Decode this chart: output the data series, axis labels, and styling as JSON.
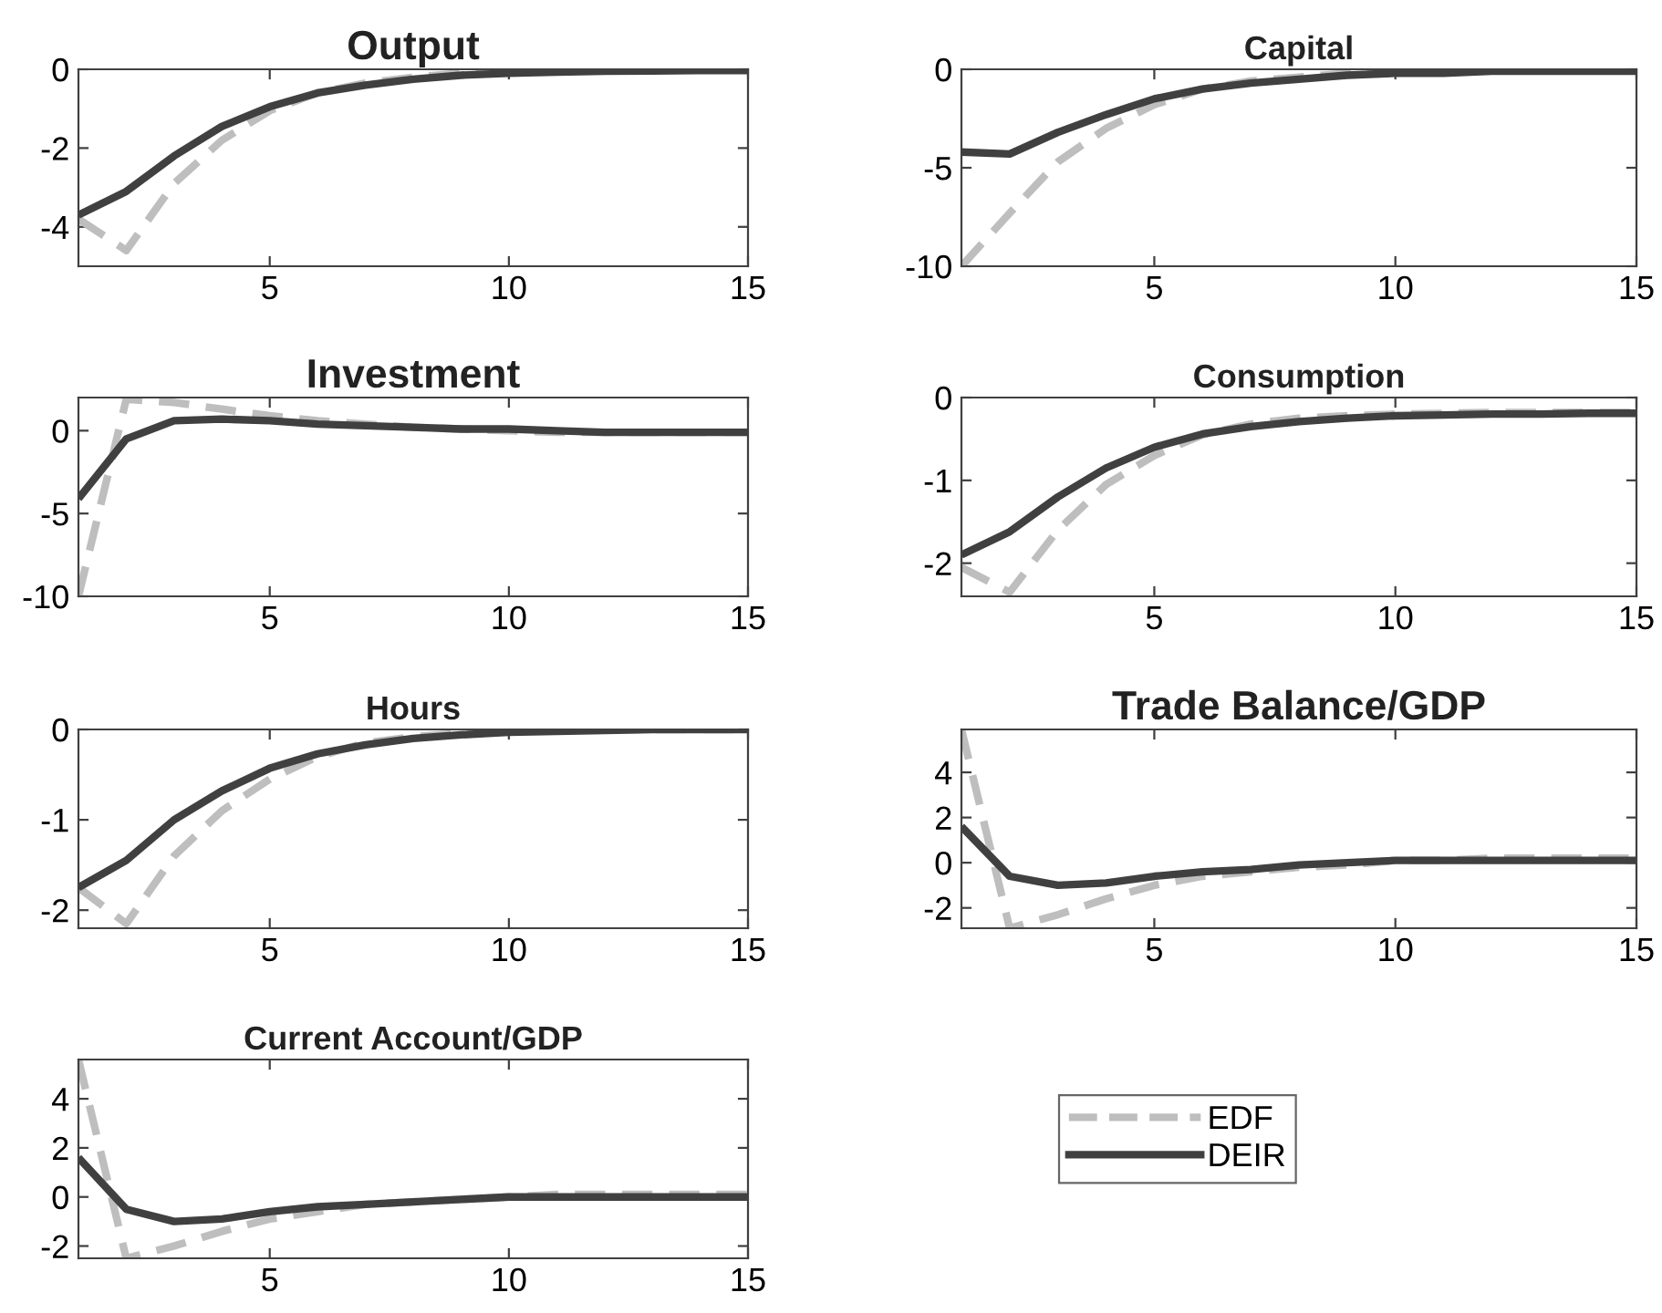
{
  "chart_data": [
    {
      "type": "line",
      "title": "Output",
      "x": [
        1,
        2,
        3,
        4,
        5,
        6,
        7,
        8,
        9,
        10,
        11,
        12,
        13,
        14,
        15
      ],
      "xlim": [
        1,
        15
      ],
      "xticks": [
        5,
        10,
        15
      ],
      "ylim": [
        -5,
        0
      ],
      "yticks": [
        -4,
        -2,
        0
      ],
      "line_style": "solid",
      "series": [
        {
          "color": "#bebebe",
          "line_style": "dashed",
          "values": [
            -3.8,
            -4.6,
            -2.9,
            -1.8,
            -1.05,
            -0.6,
            -0.35,
            -0.2,
            -0.1,
            -0.05,
            -0.02,
            0,
            0,
            0,
            0
          ]
        },
        {
          "color": "#404040",
          "values": [
            -3.7,
            -3.1,
            -2.2,
            -1.45,
            -0.95,
            -0.6,
            -0.4,
            -0.25,
            -0.15,
            -0.1,
            -0.07,
            -0.05,
            -0.04,
            -0.03,
            -0.03
          ]
        }
      ]
    },
    {
      "type": "line",
      "title": "Capital",
      "x": [
        1,
        2,
        3,
        4,
        5,
        6,
        7,
        8,
        9,
        10,
        11,
        12,
        13,
        14,
        15
      ],
      "xlim": [
        1,
        15
      ],
      "xticks": [
        5,
        10,
        15
      ],
      "ylim": [
        -10,
        0
      ],
      "yticks": [
        -10,
        -5,
        0
      ],
      "line_style": "solid",
      "series": [
        {
          "color": "#bebebe",
          "line_style": "dashed",
          "values": [
            -10,
            -7.3,
            -4.7,
            -3.0,
            -1.8,
            -1.0,
            -0.6,
            -0.4,
            -0.2,
            -0.1,
            -0.1,
            0,
            0,
            0,
            0
          ]
        },
        {
          "color": "#404040",
          "values": [
            -4.2,
            -4.3,
            -3.2,
            -2.3,
            -1.5,
            -1.0,
            -0.7,
            -0.5,
            -0.3,
            -0.2,
            -0.2,
            -0.1,
            -0.1,
            -0.1,
            -0.1
          ]
        }
      ]
    },
    {
      "type": "line",
      "title": "Investment",
      "x": [
        1,
        2,
        3,
        4,
        5,
        6,
        7,
        8,
        9,
        10,
        11,
        12,
        13,
        14,
        15
      ],
      "xlim": [
        1,
        15
      ],
      "xticks": [
        5,
        10,
        15
      ],
      "ylim": [
        -10,
        2
      ],
      "yticks": [
        -10,
        -5,
        0
      ],
      "line_style": "solid",
      "series": [
        {
          "color": "#bebebe",
          "line_style": "dashed",
          "values": [
            -10,
            1.9,
            1.7,
            1.3,
            0.9,
            0.6,
            0.4,
            0.2,
            0.1,
            0.0,
            -0.1,
            -0.1,
            -0.1,
            -0.1,
            -0.1
          ]
        },
        {
          "color": "#404040",
          "values": [
            -4.1,
            -0.5,
            0.6,
            0.7,
            0.6,
            0.4,
            0.3,
            0.2,
            0.1,
            0.1,
            0,
            -0.1,
            -0.1,
            -0.1,
            -0.1
          ]
        }
      ]
    },
    {
      "type": "line",
      "title": "Consumption",
      "x": [
        1,
        2,
        3,
        4,
        5,
        6,
        7,
        8,
        9,
        10,
        11,
        12,
        13,
        14,
        15
      ],
      "xlim": [
        1,
        15
      ],
      "xticks": [
        5,
        10,
        15
      ],
      "ylim": [
        -2.4,
        0
      ],
      "yticks": [
        -2,
        -1,
        0
      ],
      "line_style": "solid",
      "series": [
        {
          "color": "#bebebe",
          "line_style": "dashed",
          "values": [
            -2.05,
            -2.35,
            -1.6,
            -1.05,
            -0.7,
            -0.45,
            -0.32,
            -0.25,
            -0.22,
            -0.2,
            -0.19,
            -0.18,
            -0.18,
            -0.18,
            -0.18
          ]
        },
        {
          "color": "#404040",
          "values": [
            -1.9,
            -1.62,
            -1.2,
            -0.85,
            -0.6,
            -0.44,
            -0.35,
            -0.29,
            -0.25,
            -0.22,
            -0.21,
            -0.2,
            -0.2,
            -0.19,
            -0.19
          ]
        }
      ]
    },
    {
      "type": "line",
      "title": "Hours",
      "x": [
        1,
        2,
        3,
        4,
        5,
        6,
        7,
        8,
        9,
        10,
        11,
        12,
        13,
        14,
        15
      ],
      "xlim": [
        1,
        15
      ],
      "xticks": [
        5,
        10,
        15
      ],
      "ylim": [
        -2.2,
        0
      ],
      "yticks": [
        -2,
        -1,
        0
      ],
      "line_style": "solid",
      "series": [
        {
          "color": "#bebebe",
          "line_style": "dashed",
          "values": [
            -1.75,
            -2.15,
            -1.4,
            -0.9,
            -0.55,
            -0.3,
            -0.15,
            -0.08,
            -0.04,
            -0.02,
            0,
            0,
            0,
            0,
            0
          ]
        },
        {
          "color": "#404040",
          "values": [
            -1.75,
            -1.45,
            -1.0,
            -0.68,
            -0.43,
            -0.27,
            -0.17,
            -0.1,
            -0.06,
            -0.03,
            -0.02,
            -0.01,
            0,
            0,
            0
          ]
        }
      ]
    },
    {
      "type": "line",
      "title": "Trade Balance/GDP",
      "x": [
        1,
        2,
        3,
        4,
        5,
        6,
        7,
        8,
        9,
        10,
        11,
        12,
        13,
        14,
        15
      ],
      "xlim": [
        1,
        15
      ],
      "xticks": [
        5,
        10,
        15
      ],
      "ylim": [
        -2.9,
        5.9
      ],
      "yticks": [
        -2,
        0,
        2,
        4
      ],
      "line_style": "solid",
      "series": [
        {
          "color": "#bebebe",
          "line_style": "dashed",
          "values": [
            5.9,
            -2.9,
            -2.3,
            -1.6,
            -1.0,
            -0.6,
            -0.4,
            -0.2,
            -0.1,
            0.1,
            0.1,
            0.2,
            0.2,
            0.2,
            0.2
          ]
        },
        {
          "color": "#404040",
          "values": [
            1.6,
            -0.6,
            -1.0,
            -0.9,
            -0.6,
            -0.4,
            -0.3,
            -0.1,
            0,
            0.1,
            0.1,
            0.1,
            0.1,
            0.1,
            0.1
          ]
        }
      ]
    },
    {
      "type": "line",
      "title": "Current Account/GDP",
      "x": [
        1,
        2,
        3,
        4,
        5,
        6,
        7,
        8,
        9,
        10,
        11,
        12,
        13,
        14,
        15
      ],
      "xlim": [
        1,
        15
      ],
      "xticks": [
        5,
        10,
        15
      ],
      "ylim": [
        -2.5,
        5.6
      ],
      "yticks": [
        -2,
        0,
        2,
        4
      ],
      "line_style": "solid",
      "legend": "right",
      "series": [
        {
          "name": "EDF",
          "color": "#bebebe",
          "line_style": "dashed",
          "values": [
            5.6,
            -2.5,
            -2.0,
            -1.4,
            -0.9,
            -0.6,
            -0.3,
            -0.2,
            -0.1,
            0,
            0.1,
            0.1,
            0.1,
            0.1,
            0.1
          ]
        },
        {
          "name": "DEIR",
          "color": "#404040",
          "values": [
            1.6,
            -0.5,
            -1.0,
            -0.9,
            -0.6,
            -0.4,
            -0.3,
            -0.2,
            -0.1,
            0,
            0,
            0,
            0,
            0,
            0
          ]
        }
      ]
    }
  ]
}
